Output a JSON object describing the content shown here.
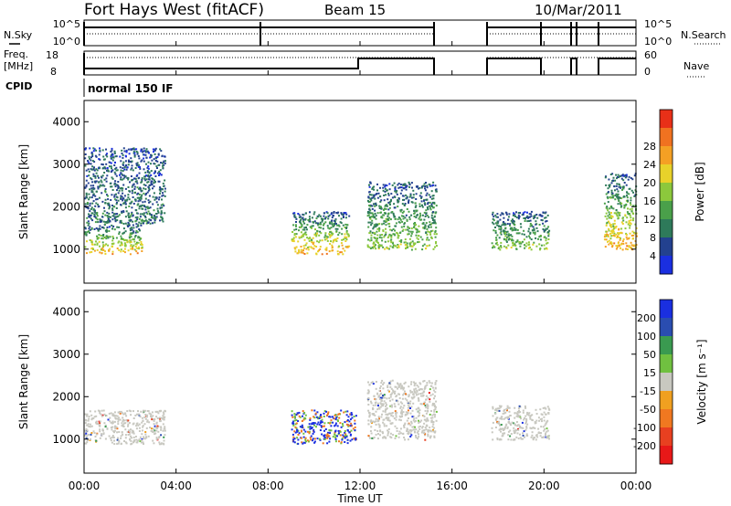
{
  "header": {
    "title": "Fort Hays West (fitACF)",
    "beam": "Beam 15",
    "date": "10/Mar/2011"
  },
  "status_panels": {
    "nsky_label": "N.Sky",
    "nsky_ticks": [
      "10^5",
      "10^0"
    ],
    "nsearch_label": "N.Search",
    "nsearch_ticks": [
      "10^5",
      "10^0"
    ],
    "freq_label": "Freq.",
    "freq_unit": "[MHz]",
    "freq_ticks": [
      "18",
      "8"
    ],
    "nave_label": "Nave",
    "nave_ticks": [
      "60",
      "0"
    ],
    "cpid_label": "CPID",
    "cpid_value": "normal 150 IF"
  },
  "chart_data": [
    {
      "type": "heatmap",
      "parameter": "power",
      "ylabel": "Slant Range [km]",
      "xlabel": "Time UT",
      "x_ticks": [
        "00:00",
        "04:00",
        "08:00",
        "12:00",
        "16:00",
        "20:00",
        "00:00"
      ],
      "x_range_hours": [
        0,
        24
      ],
      "y_ticks": [
        1000,
        2000,
        3000,
        4000
      ],
      "ylim": [
        200,
        4500
      ],
      "colorbar": {
        "label": "Power [dB]",
        "ticks": [
          "4",
          "8",
          "12",
          "16",
          "20",
          "24",
          "28"
        ],
        "colors": [
          "#1a2fe0",
          "#23418f",
          "#2e7a5a",
          "#4aa04a",
          "#8cc83c",
          "#e8d22a",
          "#f4a024",
          "#f07220",
          "#e83018"
        ]
      },
      "data_gaps_hours": [
        [
          15.6,
          17.7
        ],
        [
          20.2,
          21.2
        ],
        [
          21.4,
          22.6
        ]
      ],
      "echo_regions": [
        {
          "t": [
            0.0,
            2.5
          ],
          "range_km": [
            900,
            1600
          ],
          "level": "high"
        },
        {
          "t": [
            0.0,
            3.5
          ],
          "range_km": [
            1600,
            3400
          ],
          "level": "low"
        },
        {
          "t": [
            9.0,
            11.5
          ],
          "range_km": [
            900,
            1900
          ],
          "level": "high"
        },
        {
          "t": [
            12.3,
            15.3
          ],
          "range_km": [
            1000,
            2600
          ],
          "level": "medium"
        },
        {
          "t": [
            17.7,
            20.2
          ],
          "range_km": [
            1000,
            1900
          ],
          "level": "medium"
        },
        {
          "t": [
            22.6,
            24.0
          ],
          "range_km": [
            1000,
            2800
          ],
          "level": "high"
        }
      ]
    },
    {
      "type": "heatmap",
      "parameter": "velocity",
      "ylabel": "Slant Range [km]",
      "xlabel": "Time UT",
      "x_ticks": [
        "00:00",
        "04:00",
        "08:00",
        "12:00",
        "16:00",
        "20:00",
        "00:00"
      ],
      "x_range_hours": [
        0,
        24
      ],
      "y_ticks": [
        1000,
        2000,
        3000,
        4000
      ],
      "ylim": [
        200,
        4500
      ],
      "colorbar": {
        "label": "Velocity [m s⁻¹]",
        "ticks": [
          "200",
          "100",
          "50",
          "15",
          "-15",
          "-50",
          "-100",
          "-200"
        ],
        "colors": [
          "#1a2fe0",
          "#2a4db0",
          "#3a9a50",
          "#70c040",
          "#c8c8c0",
          "#f0a020",
          "#f07820",
          "#e84020",
          "#e81818"
        ]
      },
      "data_gaps_hours": [
        [
          15.6,
          17.7
        ],
        [
          20.2,
          21.2
        ],
        [
          21.4,
          22.6
        ]
      ],
      "echo_regions": [
        {
          "t": [
            0.0,
            3.5
          ],
          "range_km": [
            900,
            1700
          ],
          "level": "ground"
        },
        {
          "t": [
            9.0,
            11.8
          ],
          "range_km": [
            900,
            1700
          ],
          "level": "mixed"
        },
        {
          "t": [
            12.3,
            15.3
          ],
          "range_km": [
            1000,
            2400
          ],
          "level": "ground"
        },
        {
          "t": [
            17.7,
            20.2
          ],
          "range_km": [
            1000,
            1800
          ],
          "level": "ground"
        }
      ]
    }
  ]
}
